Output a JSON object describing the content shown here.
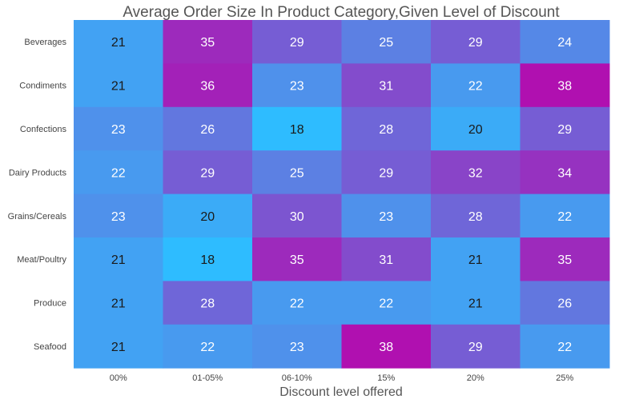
{
  "chart_data": {
    "type": "heatmap",
    "title": "Average Order Size In Product Category,Given Level of Discount",
    "xlabel": "Discount level offered",
    "ylabel": "",
    "x_categories": [
      "00%",
      "01-05%",
      "06-10%",
      "15%",
      "20%",
      "25%"
    ],
    "y_categories": [
      "Beverages",
      "Condiments",
      "Confections",
      "Dairy Products",
      "Grains/Cereals",
      "Meat/Poultry",
      "Produce",
      "Seafood"
    ],
    "values": [
      [
        21,
        35,
        29,
        25,
        29,
        24
      ],
      [
        21,
        36,
        23,
        31,
        22,
        38
      ],
      [
        23,
        26,
        18,
        28,
        20,
        29
      ],
      [
        22,
        29,
        25,
        29,
        32,
        34
      ],
      [
        23,
        20,
        30,
        23,
        28,
        22
      ],
      [
        21,
        18,
        35,
        31,
        21,
        35
      ],
      [
        21,
        28,
        22,
        22,
        21,
        26
      ],
      [
        21,
        22,
        23,
        38,
        29,
        22
      ]
    ],
    "color_scale": {
      "low": "#2ebcff",
      "high": "#b010b0",
      "min": 18,
      "max": 38
    },
    "grid": false,
    "legend": "none"
  }
}
